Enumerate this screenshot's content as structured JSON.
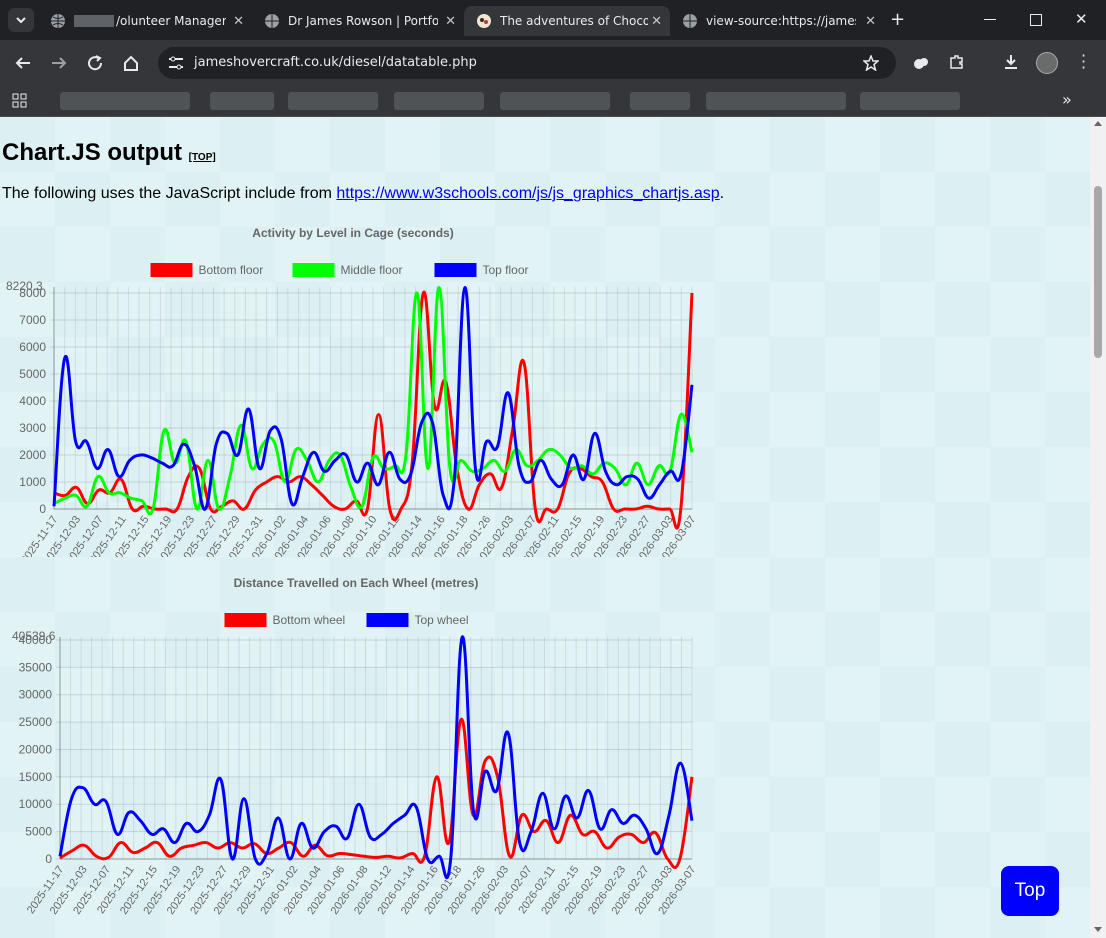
{
  "browser": {
    "tabs": [
      {
        "label": "/olunteer Manager"
      },
      {
        "label": "Dr James Rowson | Portfoli"
      },
      {
        "label": "The adventures of Chocola"
      },
      {
        "label": "view-source:https://jamesh"
      }
    ],
    "url": "jameshovercraft.co.uk/diesel/datatable.php",
    "new_tab_glyph": "+",
    "overflow_glyph": "»"
  },
  "page": {
    "heading": "Chart.JS output",
    "top_link": "[TOP]",
    "intro_text": "The following uses the JavaScript include from ",
    "intro_link": "https://www.w3schools.com/js/js_graphics_chartjs.asp",
    "intro_end": ".",
    "top_button": "Top"
  },
  "colors": {
    "red": "#ff0000",
    "green": "#00ff00",
    "blue": "#0000ff"
  },
  "chart_data": [
    {
      "type": "line",
      "title": "Activity by Level in Cage (seconds)",
      "ylim": [
        0,
        8220.3
      ],
      "ymax_label": "8220.3",
      "yticks": [
        0,
        1000,
        2000,
        3000,
        4000,
        5000,
        6000,
        7000,
        8000
      ],
      "xtick_labels": [
        "2025-11-17",
        "2025-12-03",
        "2025-12-07",
        "2025-12-11",
        "2025-12-15",
        "2025-12-19",
        "2025-12-23",
        "2025-12-27",
        "2025-12-29",
        "2025-12-31",
        "2026-01-02",
        "2026-01-04",
        "2026-01-06",
        "2026-01-08",
        "2026-01-10",
        "2026-01-12",
        "2026-01-14",
        "2026-01-16",
        "2026-01-18",
        "2026-01-26",
        "2026-02-03",
        "2026-02-07",
        "2026-02-11",
        "2026-02-15",
        "2026-02-19",
        "2026-02-23",
        "2026-02-27",
        "2026-03-03",
        "2026-03-07"
      ],
      "grid": true,
      "legend_position": "top",
      "series": [
        {
          "name": "Bottom floor",
          "color": "#ff0000",
          "values": [
            600,
            500,
            800,
            200,
            700,
            600,
            1100,
            0,
            100,
            0,
            0,
            0,
            1200,
            1500,
            0,
            100,
            300,
            0,
            700,
            1000,
            1200,
            1000,
            1200,
            900,
            500,
            100,
            0,
            300,
            0,
            3500,
            0,
            0,
            1700,
            8000,
            3800,
            4700,
            1500,
            0,
            900,
            1300,
            800,
            3000,
            5400,
            0,
            0,
            0,
            1300,
            1500,
            1200,
            1000,
            0,
            0,
            0,
            100,
            0,
            0,
            0,
            8000
          ]
        },
        {
          "name": "Middle floor",
          "color": "#00ff00",
          "values": [
            200,
            400,
            500,
            100,
            1200,
            600,
            600,
            400,
            300,
            0,
            2900,
            1700,
            2500,
            0,
            1800,
            0,
            1200,
            3100,
            1500,
            2400,
            2500,
            1000,
            2200,
            1800,
            1000,
            1800,
            2000,
            800,
            100,
            1900,
            1500,
            1600,
            2000,
            8000,
            1500,
            8200,
            1500,
            1800,
            1400,
            1500,
            1800,
            1400,
            2200,
            1600,
            1800,
            2200,
            2000,
            1500,
            1600,
            1300,
            1700,
            1500,
            900,
            1700,
            900,
            1600,
            1400,
            3500,
            2100
          ]
        },
        {
          "name": "Top floor",
          "color": "#0000ff",
          "values": [
            100,
            5600,
            2500,
            2500,
            1500,
            2200,
            1200,
            1800,
            2000,
            1900,
            1700,
            1600,
            2400,
            1600,
            0,
            2400,
            2800,
            2000,
            3700,
            1500,
            2900,
            2600,
            200,
            1200,
            2100,
            1400,
            1800,
            2000,
            1000,
            1700,
            900,
            2100,
            1100,
            1300,
            3200,
            3200,
            500,
            1000,
            8200,
            1400,
            2500,
            2300,
            4300,
            1600,
            1000,
            1800,
            1100,
            900,
            2000,
            1100,
            2800,
            1400,
            900,
            1200,
            1100,
            400,
            900,
            1400,
            1300,
            4600
          ]
        }
      ]
    },
    {
      "type": "line",
      "title": "Distance Travelled on Each Wheel (metres)",
      "ylim": [
        0,
        40539.6
      ],
      "ymax_label": "40539.6",
      "yticks": [
        0,
        5000,
        10000,
        15000,
        20000,
        25000,
        30000,
        35000,
        40000
      ],
      "xtick_labels": [
        "2025-11-17",
        "2025-12-03",
        "2025-12-07",
        "2025-12-11",
        "2025-12-15",
        "2025-12-19",
        "2025-12-23",
        "2025-12-27",
        "2025-12-29",
        "2025-12-31",
        "2026-01-02",
        "2026-01-04",
        "2026-01-06",
        "2026-01-08",
        "2026-01-12",
        "2026-01-14",
        "2026-01-16",
        "2026-01-18",
        "2026-01-26",
        "2026-02-03",
        "2026-02-07",
        "2026-02-11",
        "2026-02-15",
        "2026-02-19",
        "2026-02-23",
        "2026-02-27",
        "2026-03-03",
        "2026-03-07"
      ],
      "grid": true,
      "legend_position": "top",
      "series": [
        {
          "name": "Bottom wheel",
          "color": "#ff0000",
          "values": [
            200,
            1500,
            2500,
            500,
            300,
            3000,
            1200,
            2000,
            3000,
            500,
            2000,
            2500,
            3000,
            2000,
            3000,
            2000,
            2800,
            1000,
            2000,
            3000,
            500,
            2500,
            600,
            1000,
            800,
            500,
            300,
            500,
            200,
            1000,
            500,
            15000,
            3000,
            25500,
            8000,
            18000,
            15000,
            500,
            8000,
            5000,
            7000,
            3000,
            8000,
            4500,
            5000,
            2000,
            4000,
            4500,
            3000,
            4800,
            0,
            0,
            15000
          ]
        },
        {
          "name": "Top wheel",
          "color": "#0000ff",
          "values": [
            500,
            11000,
            13000,
            10000,
            10500,
            4500,
            8500,
            7000,
            4500,
            5500,
            3000,
            6500,
            5000,
            8000,
            14500,
            0,
            11000,
            0,
            1000,
            7500,
            0,
            6500,
            2000,
            5000,
            6000,
            3800,
            10000,
            4000,
            4500,
            6500,
            8000,
            9500,
            0,
            500,
            0,
            40500,
            8500,
            16000,
            12500,
            23000,
            3000,
            5000,
            12000,
            5500,
            11500,
            7500,
            12500,
            5500,
            9000,
            6500,
            8000,
            5500,
            1000,
            8000,
            17500,
            7000
          ]
        }
      ]
    }
  ]
}
